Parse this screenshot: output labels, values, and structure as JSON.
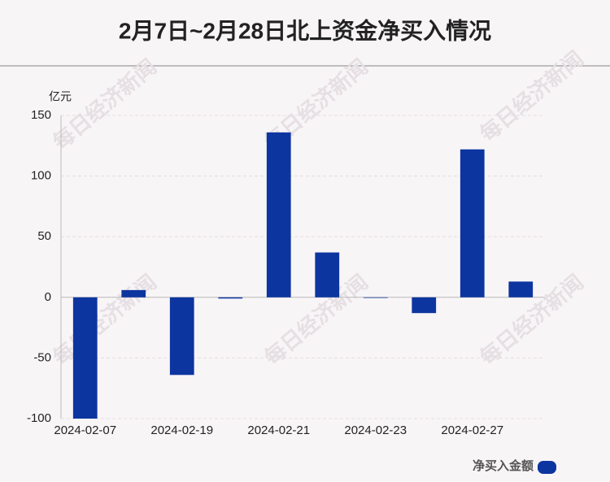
{
  "chart_data": {
    "type": "bar",
    "title": "2月7日~2月28日北上资金净买入情况",
    "y_unit": "亿元",
    "watermark": "每日经济新闻",
    "categories": [
      "2024-02-07",
      null,
      "2024-02-19",
      null,
      "2024-02-21",
      null,
      "2024-02-23",
      null,
      "2024-02-27",
      null
    ],
    "series": [
      {
        "name": "净买入金额",
        "color": "#0d35a0",
        "values": [
          -100,
          6,
          -64,
          -1,
          136,
          37,
          -0.5,
          -13,
          122,
          13
        ]
      }
    ],
    "ylim": [
      -100,
      150
    ],
    "yticks": [
      -100,
      -50,
      0,
      50,
      100,
      150
    ],
    "grid": true,
    "legend": "bottom-right"
  }
}
